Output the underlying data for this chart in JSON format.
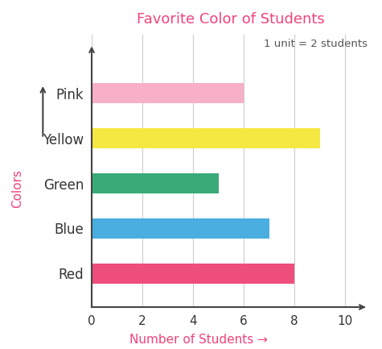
{
  "title": "Favorite Color of Students",
  "title_color": "#f0437a",
  "annotation": "1 unit = 2 students",
  "categories": [
    "Red",
    "Blue",
    "Green",
    "Yellow",
    "Pink"
  ],
  "values": [
    8,
    7,
    5,
    9,
    6
  ],
  "bar_colors": [
    "#ee4e7b",
    "#4aaee0",
    "#3aaa78",
    "#f5e842",
    "#f8afc8"
  ],
  "xlabel": "Number of Students →",
  "xlabel_color": "#f0437a",
  "ylabel": "Colors",
  "ylabel_color": "#f0437a",
  "xlim": [
    0,
    11
  ],
  "xticks": [
    0,
    2,
    4,
    6,
    8,
    10
  ],
  "grid_color": "#cccccc",
  "bar_height": 0.45,
  "background_color": "#ffffff",
  "axis_color": "#444444",
  "tick_fontsize": 11,
  "label_fontsize": 11,
  "title_fontsize": 13
}
